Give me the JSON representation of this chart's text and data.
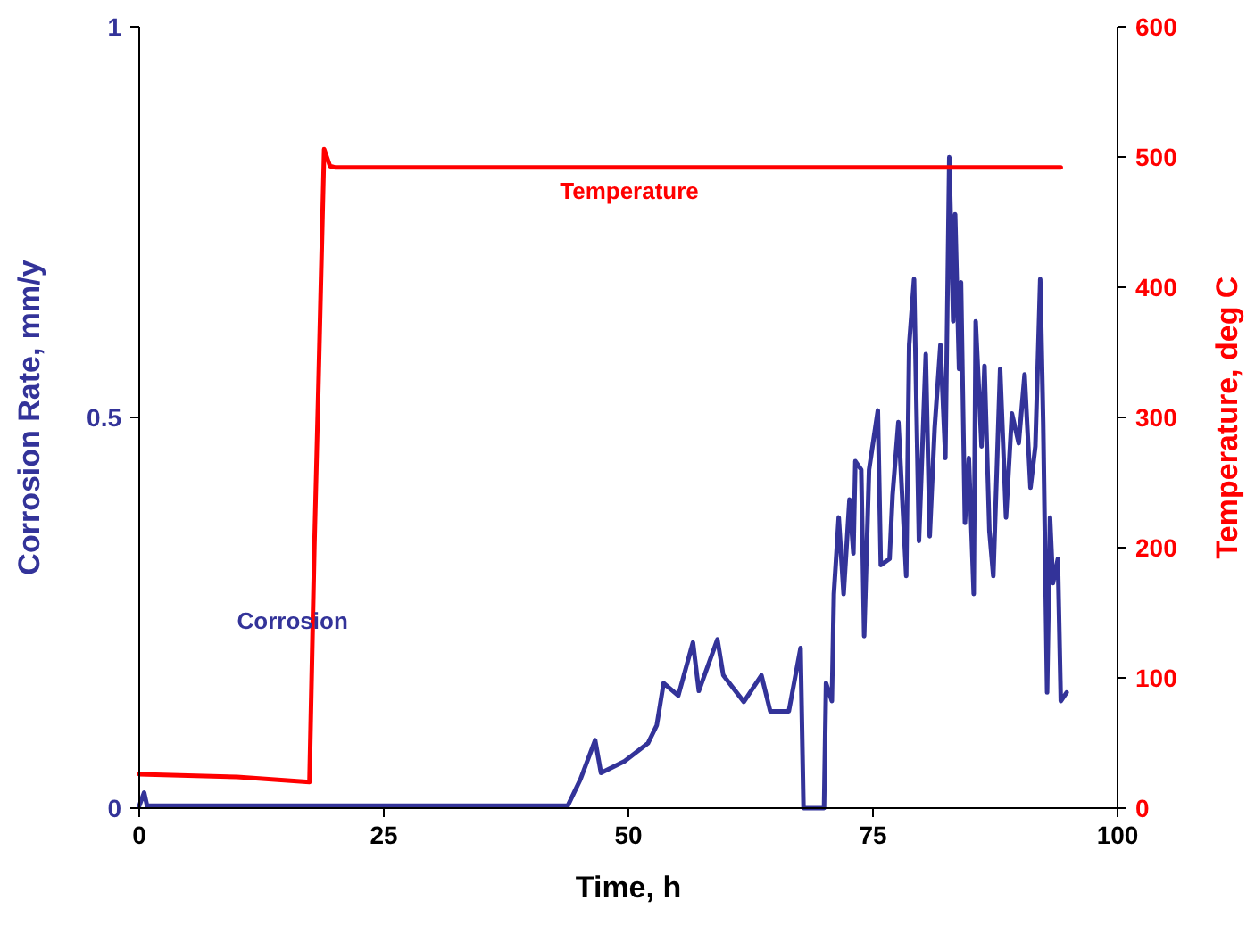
{
  "chart_data": {
    "type": "line",
    "xlabel": "Time, h",
    "ylabel": "Corrosion Rate, mm/y",
    "y2label": "Temperature, deg C",
    "xlim": [
      0,
      100
    ],
    "xticks": [
      0,
      25,
      50,
      75,
      100
    ],
    "ylim": [
      0,
      1
    ],
    "yticks": [
      0,
      0.5,
      1
    ],
    "y2lim": [
      0,
      600
    ],
    "y2ticks": [
      0,
      100,
      200,
      300,
      400,
      500,
      600
    ],
    "grid": false,
    "legend": false,
    "marker": "none",
    "line_style": "solid",
    "series": [
      {
        "name": "Corrosion",
        "color": "#333399",
        "x": [
          0,
          0.5,
          0.8,
          10,
          20,
          30,
          40,
          43.8,
          45.1,
          46.6,
          47.2,
          49.6,
          52,
          52.9,
          53.6,
          55.1,
          56.6,
          57.2,
          59.1,
          59.7,
          61.8,
          63.6,
          64.5,
          66.4,
          67.6,
          67.9,
          70,
          70.2,
          70.8,
          71,
          71.5,
          72,
          72.6,
          73,
          73.2,
          73.8,
          74.1,
          74.6,
          75.5,
          75.8,
          76.7,
          77,
          77.6,
          78.4,
          78.7,
          79.2,
          79.7,
          80.4,
          80.8,
          81.3,
          81.9,
          82.4,
          82.8,
          83.2,
          83.4,
          83.8,
          84,
          84.4,
          84.8,
          85.3,
          85.5,
          86.1,
          86.4,
          86.9,
          87.3,
          88,
          88.6,
          89.2,
          89.9,
          90.5,
          91.1,
          91.6,
          92.1,
          92.4,
          92.8,
          93.1,
          93.4,
          93.9,
          94.2,
          94.8
        ],
        "values": [
          0.003,
          0.02,
          0.003,
          0.003,
          0.003,
          0.003,
          0.003,
          0.003,
          0.037,
          0.087,
          0.045,
          0.06,
          0.083,
          0.106,
          0.16,
          0.144,
          0.212,
          0.15,
          0.216,
          0.17,
          0.136,
          0.17,
          0.124,
          0.124,
          0.205,
          0,
          0,
          0.16,
          0.137,
          0.274,
          0.372,
          0.274,
          0.395,
          0.326,
          0.444,
          0.433,
          0.22,
          0.433,
          0.509,
          0.311,
          0.319,
          0.4,
          0.494,
          0.297,
          0.593,
          0.677,
          0.342,
          0.581,
          0.348,
          0.486,
          0.593,
          0.448,
          0.833,
          0.623,
          0.76,
          0.562,
          0.673,
          0.365,
          0.448,
          0.274,
          0.623,
          0.463,
          0.566,
          0.355,
          0.297,
          0.562,
          0.372,
          0.505,
          0.467,
          0.555,
          0.41,
          0.463,
          0.677,
          0.494,
          0.148,
          0.372,
          0.288,
          0.319,
          0.137,
          0.148
        ]
      },
      {
        "name": "Temperature",
        "color": "#ff0000",
        "axis": "y2",
        "x": [
          0,
          10,
          17.4,
          17.9,
          18.3,
          18.9,
          19.5,
          20,
          50,
          94.2
        ],
        "values": [
          26,
          24,
          20,
          200,
          319,
          506,
          493,
          492,
          492,
          492
        ]
      }
    ]
  }
}
